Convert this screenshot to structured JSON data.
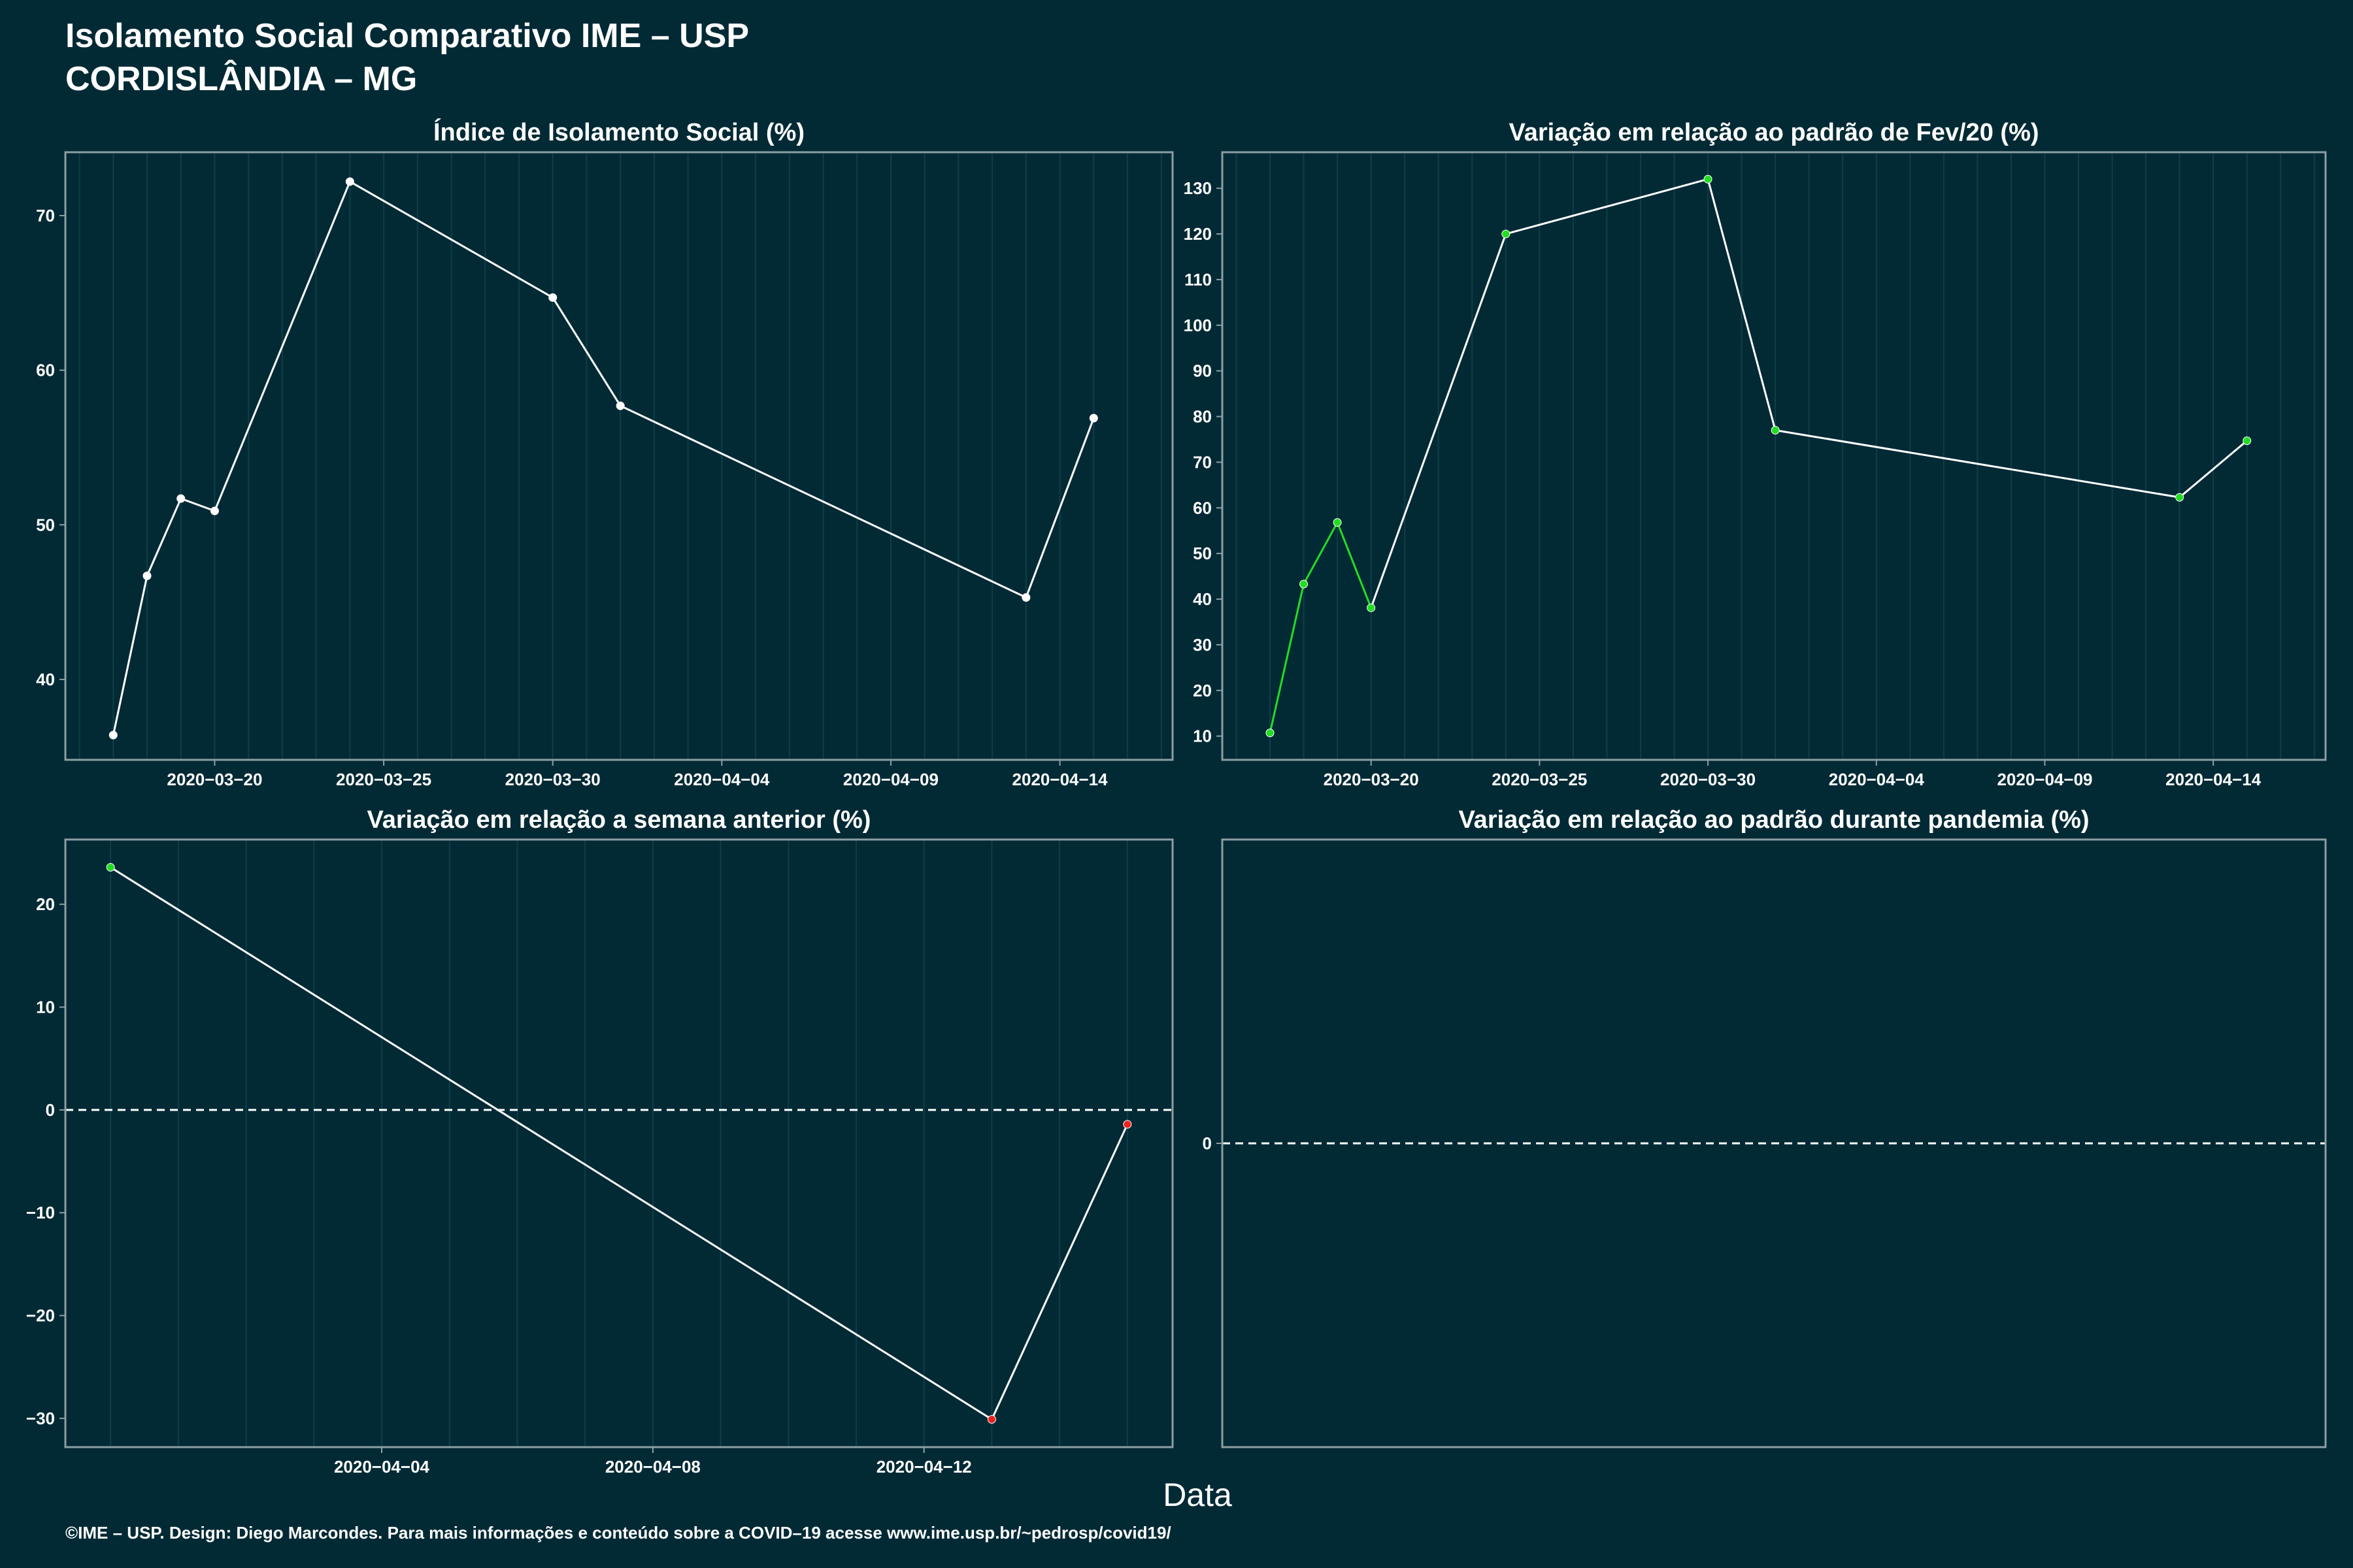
{
  "header": {
    "title": "Isolamento Social Comparativo IME – USP",
    "subtitle": "CORDISLÂNDIA – MG"
  },
  "xlabel": "Data",
  "footer": "©IME – USP. Design: Diego Marcondes. Para mais informações e conteúdo sobre a COVID–19 acesse www.ime.usp.br/~pedrosp/covid19/",
  "colors": {
    "background": "#022a35",
    "panel_border": "#8c9ea3",
    "grid": "#0d3f49",
    "line": "#ffffff",
    "up": "#22dd22",
    "down": "#ee2222"
  },
  "chart_data": [
    {
      "id": "isolamento",
      "type": "line",
      "title": "Índice de Isolamento Social (%)",
      "x": [
        "2020-03-17",
        "2020-03-18",
        "2020-03-19",
        "2020-03-20",
        "2020-03-24",
        "2020-03-30",
        "2020-04-01",
        "2020-04-13",
        "2020-04-15"
      ],
      "y": [
        36.4,
        46.7,
        51.7,
        50.9,
        72.2,
        64.7,
        57.7,
        45.3,
        56.9
      ],
      "xlim": [
        "2020-03-15T14:00",
        "2020-04-17T08:00"
      ],
      "ylim": [
        34.8,
        74.1
      ],
      "x_ticks": [
        "2020-03-20",
        "2020-03-25",
        "2020-03-30",
        "2020-04-04",
        "2020-04-09",
        "2020-04-14"
      ],
      "y_ticks": [
        40,
        50,
        60,
        70
      ],
      "grid": true,
      "point_color": "#ffffff",
      "segment_color": "#ffffff"
    },
    {
      "id": "fev20",
      "type": "line",
      "title": "Variação em relação ao padrão de Fev/20 (%)",
      "x": [
        "2020-03-17",
        "2020-03-18",
        "2020-03-19",
        "2020-03-20",
        "2020-03-24",
        "2020-03-30",
        "2020-04-01",
        "2020-04-13",
        "2020-04-15"
      ],
      "y": [
        10.7,
        43.3,
        56.8,
        38.1,
        120.0,
        132.0,
        77.0,
        62.3,
        74.7
      ],
      "point_colors": [
        "#22dd22",
        "#22dd22",
        "#22dd22",
        "#22dd22",
        "#22dd22",
        "#22dd22",
        "#22dd22",
        "#22dd22",
        "#22dd22"
      ],
      "segment_colors": [
        "#22dd22",
        "#22dd22",
        "#22dd22",
        "#ffffff",
        "#ffffff",
        "#ffffff",
        "#ffffff",
        "#ffffff"
      ],
      "xlim": [
        "2020-03-15T14:00",
        "2020-04-17T08:00"
      ],
      "ylim": [
        4.8,
        137.9
      ],
      "x_ticks": [
        "2020-03-20",
        "2020-03-25",
        "2020-03-30",
        "2020-04-04",
        "2020-04-09",
        "2020-04-14"
      ],
      "y_ticks": [
        10,
        20,
        30,
        40,
        50,
        60,
        70,
        80,
        90,
        100,
        110,
        120,
        130
      ],
      "grid": true
    },
    {
      "id": "semana",
      "type": "line",
      "title": "Variação em relação a semana anterior (%)",
      "x": [
        "2020-03-31",
        "2020-04-13",
        "2020-04-15"
      ],
      "y": [
        23.6,
        -30.1,
        -1.4
      ],
      "point_colors": [
        "#22dd22",
        "#ee2222",
        "#ee2222"
      ],
      "segment_colors": [
        "#ffffff",
        "#ffffff"
      ],
      "xlim": [
        "2020-03-30T08:00",
        "2020-04-15T16:00"
      ],
      "ylim": [
        -32.8,
        26.3
      ],
      "x_ticks": [
        "2020-04-04",
        "2020-04-08",
        "2020-04-12"
      ],
      "y_ticks": [
        -30,
        -20,
        -10,
        0,
        10,
        20
      ],
      "reference_line": 0,
      "grid": true
    },
    {
      "id": "pandemia",
      "type": "line",
      "title": "Variação em relação ao padrão durante pandemia (%)",
      "x": [],
      "y": [],
      "ylim": [
        -1,
        1
      ],
      "y_ticks": [
        0
      ],
      "reference_line": 0,
      "grid": false
    }
  ]
}
